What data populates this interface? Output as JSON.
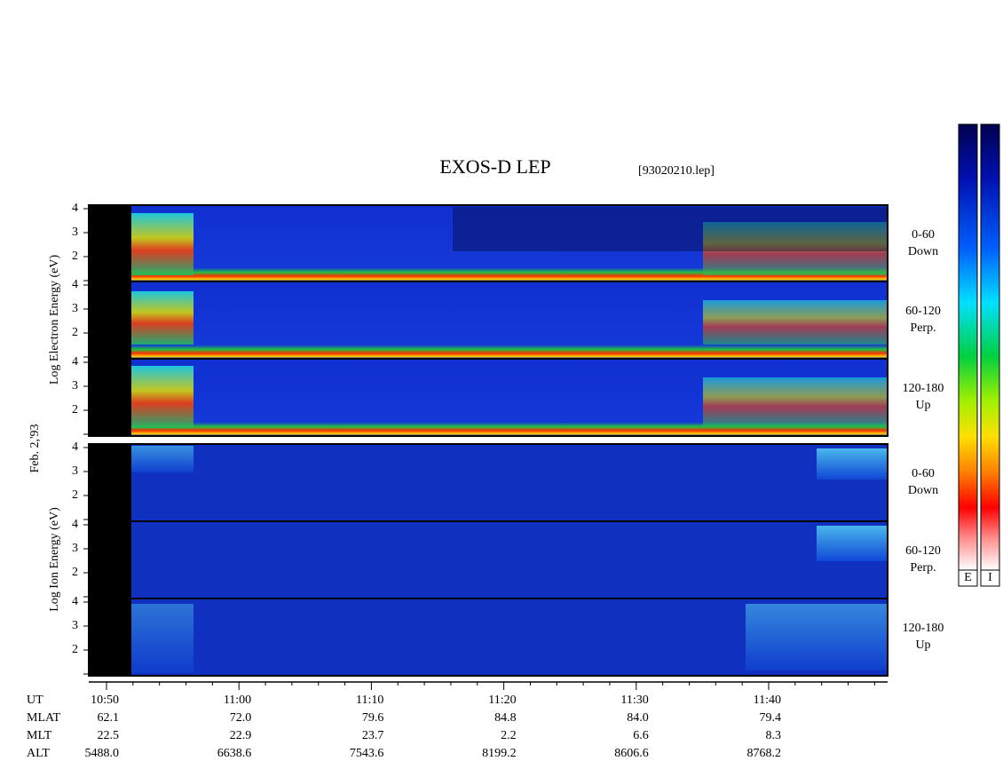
{
  "title": "EXOS-D LEP",
  "file": "[93020210.lep]",
  "date_label": "Feb. 2,'93",
  "electron_axis_label": "Log  Electron  Energy (eV)",
  "ion_axis_label": "Log  Ion  Energy (eV)",
  "energy_ticks": [
    "4",
    "3",
    "2"
  ],
  "channels": [
    {
      "range": "0-60",
      "direction": "Down"
    },
    {
      "range": "60-120",
      "direction": "Perp."
    },
    {
      "range": "120-180",
      "direction": "Up"
    }
  ],
  "colorbar_labels": [
    "E",
    "I"
  ],
  "orbit": {
    "row_labels": [
      "UT",
      "MLAT",
      "MLT",
      "ALT"
    ],
    "columns": [
      [
        "10:50",
        "62.1",
        "22.5",
        "5488.0"
      ],
      [
        "11:00",
        "72.0",
        "22.9",
        "6638.6"
      ],
      [
        "11:10",
        "79.6",
        "23.7",
        "7543.6"
      ],
      [
        "11:20",
        "84.8",
        "2.2",
        "8199.2"
      ],
      [
        "11:30",
        "84.0",
        "6.6",
        "8606.6"
      ],
      [
        "11:40",
        "79.4",
        "8.3",
        "8768.2"
      ]
    ]
  }
}
